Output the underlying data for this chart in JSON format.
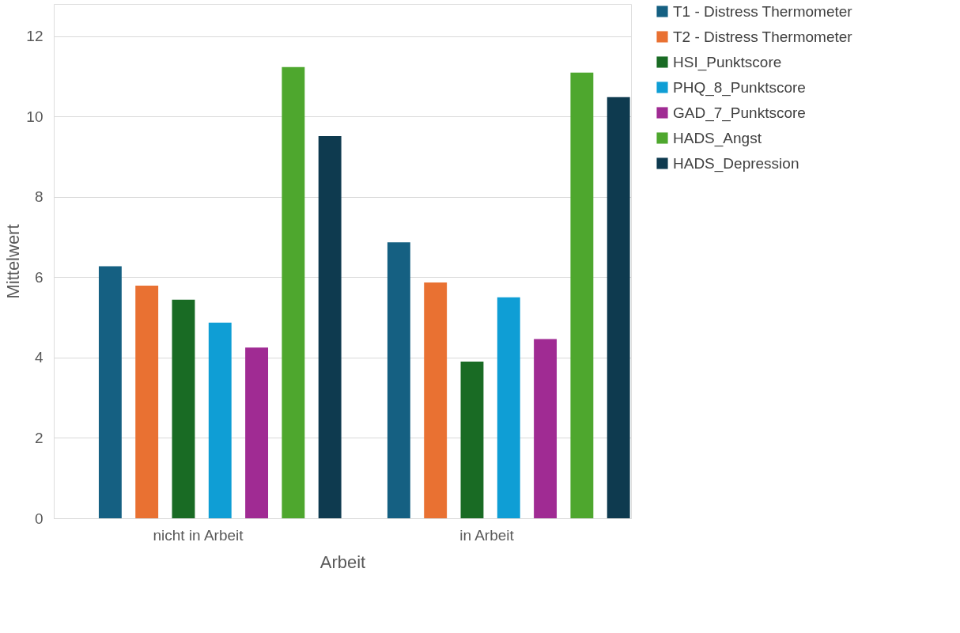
{
  "chart_data": {
    "type": "bar",
    "xlabel": "Arbeit",
    "ylabel": "Mittelwert",
    "categories": [
      "nicht in Arbeit",
      "in Arbeit"
    ],
    "series": [
      {
        "name": "T1 - Distress Thermometer",
        "color": "#156082",
        "values": [
          6.27,
          6.87
        ]
      },
      {
        "name": "T2 - Distress Thermometer",
        "color": "#e97132",
        "values": [
          5.79,
          5.87
        ]
      },
      {
        "name": "HSI_Punktscore",
        "color": "#196b24",
        "values": [
          5.44,
          3.9
        ]
      },
      {
        "name": "PHQ_8_Punktscore",
        "color": "#0f9ed5",
        "values": [
          4.87,
          5.5
        ]
      },
      {
        "name": "GAD_7_Punktscore",
        "color": "#a02b93",
        "values": [
          4.25,
          4.46
        ]
      },
      {
        "name": "HADS_Angst",
        "color": "#4ea72e",
        "values": [
          11.23,
          11.09
        ]
      },
      {
        "name": "HADS_Depression",
        "color": "#0e3a4f",
        "values": [
          9.51,
          10.48
        ]
      }
    ],
    "ylim": [
      0,
      12.8
    ],
    "yticks": [
      0,
      2,
      4,
      6,
      8,
      10,
      12
    ],
    "grid": "y",
    "legend": "right"
  }
}
